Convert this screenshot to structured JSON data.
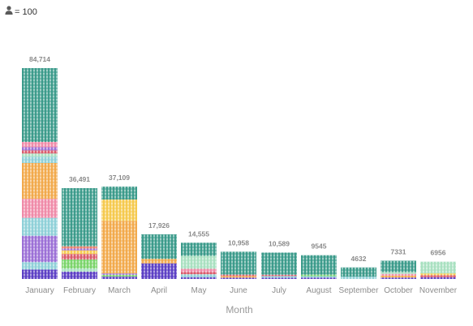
{
  "legend": {
    "icon": "person-icon",
    "text": "= 100"
  },
  "chart_data": {
    "type": "bar",
    "subtype": "pictograph",
    "unit_per_icon": 100,
    "xlabel": "Month",
    "categories": [
      "January",
      "February",
      "March",
      "April",
      "May",
      "June",
      "July",
      "August",
      "September",
      "October",
      "November"
    ],
    "total_labels": [
      "84,714",
      "36,491",
      "37,109",
      "17,926",
      "14,555",
      "10,958",
      "10,589",
      "9545",
      "4632",
      "7331",
      "6956"
    ],
    "values": [
      84714,
      36491,
      37109,
      17926,
      14555,
      10958,
      10589,
      9545,
      4632,
      7331,
      6956
    ],
    "palette": [
      "#5b3fc4",
      "#3a9a8a",
      "#7ad46a",
      "#d95a6a",
      "#f2a94a",
      "#f5c94d",
      "#9b6fd6",
      "#f08aa8",
      "#8ed0d8",
      "#a8e0c0",
      "#e8806a",
      "#2e8aa0"
    ],
    "stacks": [
      [
        [
          0.045,
          "#5b3fc4"
        ],
        [
          0.035,
          "#8ed0d8"
        ],
        [
          0.125,
          "#9b6fd6"
        ],
        [
          0.085,
          "#8ed0d8"
        ],
        [
          0.09,
          "#f08aa8"
        ],
        [
          0.17,
          "#f2a94a"
        ],
        [
          0.03,
          "#8ed0d8"
        ],
        [
          0.015,
          "#a8e0c0"
        ],
        [
          0.015,
          "#d95a6a"
        ],
        [
          0.015,
          "#9b6fd6"
        ],
        [
          0.025,
          "#f08aa8"
        ],
        [
          0.35,
          "#3a9a8a"
        ]
      ],
      [
        [
          0.08,
          "#5b3fc4"
        ],
        [
          0.035,
          "#a8e0c0"
        ],
        [
          0.1,
          "#7ad46a"
        ],
        [
          0.06,
          "#d95a6a"
        ],
        [
          0.04,
          "#f5c94d"
        ],
        [
          0.02,
          "#9b6fd6"
        ],
        [
          0.025,
          "#e8806a"
        ],
        [
          0.64,
          "#3a9a8a"
        ]
      ],
      [
        [
          0.025,
          "#5b3fc4"
        ],
        [
          0.02,
          "#7ad46a"
        ],
        [
          0.015,
          "#9b6fd6"
        ],
        [
          0.57,
          "#f2a94a"
        ],
        [
          0.23,
          "#f5c94d"
        ],
        [
          0.14,
          "#3a9a8a"
        ]
      ],
      [
        [
          0.35,
          "#5b3fc4"
        ],
        [
          0.1,
          "#f2a94a"
        ],
        [
          0.55,
          "#3a9a8a"
        ]
      ],
      [
        [
          0.05,
          "#5b3fc4"
        ],
        [
          0.08,
          "#8ed0d8"
        ],
        [
          0.06,
          "#d95a6a"
        ],
        [
          0.09,
          "#f08aa8"
        ],
        [
          0.36,
          "#a8e0c0"
        ],
        [
          0.36,
          "#3a9a8a"
        ]
      ],
      [
        [
          0.05,
          "#5b3fc4"
        ],
        [
          0.06,
          "#f2a94a"
        ],
        [
          0.05,
          "#d95a6a"
        ],
        [
          0.84,
          "#3a9a8a"
        ]
      ],
      [
        [
          0.05,
          "#5b3fc4"
        ],
        [
          0.06,
          "#8ed0d8"
        ],
        [
          0.05,
          "#d95a6a"
        ],
        [
          0.84,
          "#3a9a8a"
        ]
      ],
      [
        [
          0.06,
          "#5b3fc4"
        ],
        [
          0.06,
          "#8ed0d8"
        ],
        [
          0.06,
          "#7ad46a"
        ],
        [
          0.82,
          "#3a9a8a"
        ]
      ],
      [
        [
          0.2,
          "#8ed0d8"
        ],
        [
          0.8,
          "#3a9a8a"
        ]
      ],
      [
        [
          0.08,
          "#5b3fc4"
        ],
        [
          0.1,
          "#f2a94a"
        ],
        [
          0.1,
          "#f08aa8"
        ],
        [
          0.1,
          "#a8e0c0"
        ],
        [
          0.62,
          "#3a9a8a"
        ]
      ],
      [
        [
          0.1,
          "#5b3fc4"
        ],
        [
          0.12,
          "#d95a6a"
        ],
        [
          0.1,
          "#f5c94d"
        ],
        [
          0.68,
          "#a8e0c0"
        ]
      ]
    ]
  }
}
